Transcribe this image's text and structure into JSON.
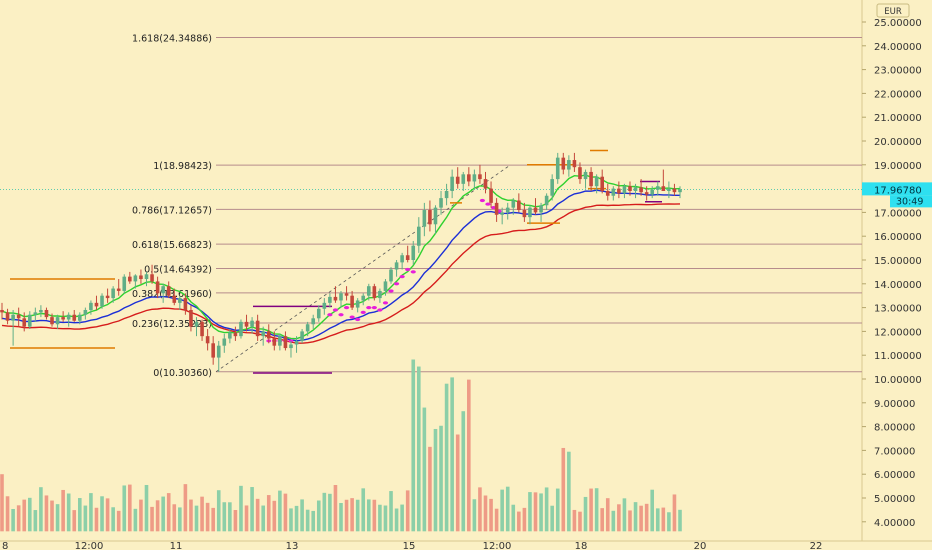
{
  "currency": "EUR",
  "price_badge": {
    "price": "17.96780",
    "countdown": "30:49"
  },
  "chart_data": {
    "type": "candlestick",
    "ylim": [
      3.6,
      25.8
    ],
    "y_ticks": [
      "4.00000",
      "5.00000",
      "6.00000",
      "7.00000",
      "8.00000",
      "9.00000",
      "10.00000",
      "11.00000",
      "12.00000",
      "13.00000",
      "14.00000",
      "15.00000",
      "16.00000",
      "17.00000",
      "18.00000",
      "19.00000",
      "20.00000",
      "21.00000",
      "22.00000",
      "23.00000",
      "24.00000",
      "25.00000"
    ],
    "x_labels": [
      "8",
      "12:00",
      "11",
      "13",
      "15",
      "12:00",
      "18",
      "20",
      "22"
    ],
    "fib_levels": [
      {
        "label": "1.618(24.34886)",
        "value": 24.34886
      },
      {
        "label": "1(18.98423)",
        "value": 18.98423
      },
      {
        "label": "0.786(17.12657)",
        "value": 17.12657
      },
      {
        "label": "0.618(15.66823)",
        "value": 15.66823
      },
      {
        "label": "0.5(14.64392)",
        "value": 14.64392
      },
      {
        "label": "0.382(13.61960)",
        "value": 13.6196
      },
      {
        "label": "0.236(12.35223)",
        "value": 12.35223
      },
      {
        "label": "0(10.30360)",
        "value": 10.3036
      }
    ],
    "close_price": 17.9678,
    "colors": {
      "up": "#5fae87",
      "down": "#c4473b",
      "fast_ma": "#2fd12f",
      "mid_ma": "#1c2fd6",
      "slow_ma": "#d61c1c"
    }
  }
}
